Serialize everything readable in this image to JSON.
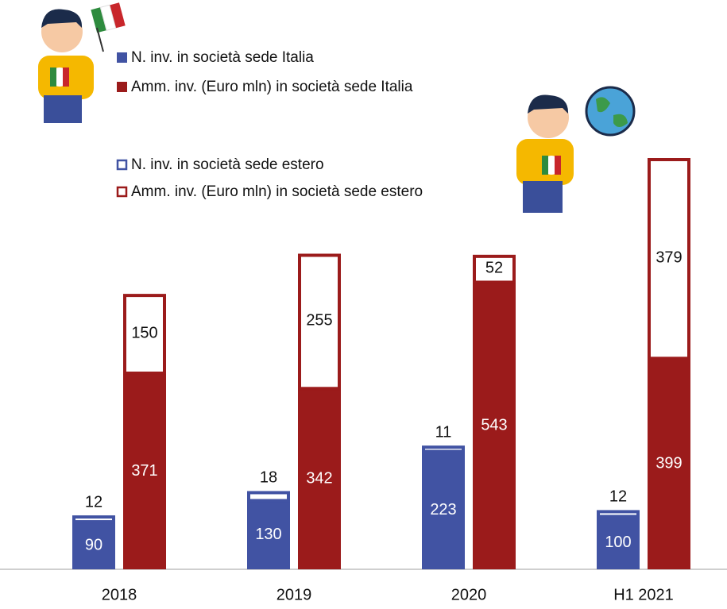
{
  "chart_data": {
    "type": "bar",
    "categories": [
      "2018",
      "2019",
      "2020",
      "H1 2021"
    ],
    "series": [
      {
        "name": "N. inv. in società sede Italia",
        "color": "#4153a3",
        "outline": false,
        "stack": 0,
        "values": [
          90,
          130,
          223,
          100
        ]
      },
      {
        "name": "Amm. inv. (Euro mln) in società sede Italia",
        "color": "#9b1b1b",
        "outline": false,
        "stack": 1,
        "values": [
          371,
          342,
          543,
          399
        ]
      },
      {
        "name": "N. inv. in società sede estero",
        "color": "#4153a3",
        "outline": true,
        "stack": 0,
        "values": [
          12,
          18,
          11,
          12
        ]
      },
      {
        "name": "Amm. inv. (Euro mln) in società sede estero",
        "color": "#9b1b1b",
        "outline": true,
        "stack": 1,
        "values": [
          150,
          255,
          52,
          379
        ]
      }
    ]
  }
}
